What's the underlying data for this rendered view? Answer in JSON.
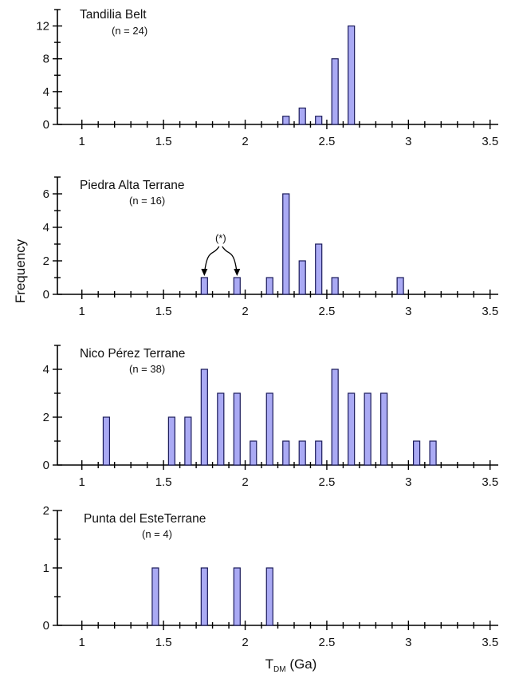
{
  "chart_data": [
    {
      "type": "bar",
      "title": "Tandilia Belt",
      "subtitle": "(n = 24)",
      "bin_width": 0.1,
      "xlim": [
        0.85,
        3.55
      ],
      "ylim": [
        0,
        14
      ],
      "xticks": [
        1,
        1.5,
        2,
        2.5,
        3,
        3.5
      ],
      "xtick_labels": [
        "1",
        "1.5",
        "2",
        "2.5",
        "3",
        "3.5"
      ],
      "yticks": [
        0,
        4,
        8,
        12
      ],
      "ytick_labels": [
        "0",
        "4",
        "8",
        "12"
      ],
      "bins": [
        {
          "x": 2.25,
          "value": 1
        },
        {
          "x": 2.35,
          "value": 2
        },
        {
          "x": 2.45,
          "value": 1
        },
        {
          "x": 2.55,
          "value": 8
        },
        {
          "x": 2.65,
          "value": 12
        }
      ]
    },
    {
      "type": "bar",
      "title": "Piedra Alta Terrane",
      "subtitle": "(n = 16)",
      "annotation": "(*)",
      "annotated_bins": [
        1.75,
        1.95
      ],
      "bin_width": 0.1,
      "xlim": [
        0.85,
        3.55
      ],
      "ylim": [
        0,
        7
      ],
      "xticks": [
        1,
        1.5,
        2,
        2.5,
        3,
        3.5
      ],
      "xtick_labels": [
        "1",
        "1.5",
        "2",
        "2.5",
        "3",
        "3.5"
      ],
      "yticks": [
        0,
        2,
        4,
        6
      ],
      "ytick_labels": [
        "0",
        "2",
        "4",
        "6"
      ],
      "bins": [
        {
          "x": 1.75,
          "value": 1
        },
        {
          "x": 1.95,
          "value": 1
        },
        {
          "x": 2.15,
          "value": 1
        },
        {
          "x": 2.25,
          "value": 6
        },
        {
          "x": 2.35,
          "value": 2
        },
        {
          "x": 2.45,
          "value": 3
        },
        {
          "x": 2.55,
          "value": 1
        },
        {
          "x": 2.95,
          "value": 1
        }
      ]
    },
    {
      "type": "bar",
      "title": "Nico Pérez Terrane",
      "subtitle": "(n = 38)",
      "bin_width": 0.1,
      "xlim": [
        0.85,
        3.55
      ],
      "ylim": [
        0,
        5
      ],
      "xticks": [
        1,
        1.5,
        2,
        2.5,
        3,
        3.5
      ],
      "xtick_labels": [
        "1",
        "1.5",
        "2",
        "2.5",
        "3",
        "3.5"
      ],
      "yticks": [
        0,
        2,
        4
      ],
      "ytick_labels": [
        "0",
        "2",
        "4"
      ],
      "bins": [
        {
          "x": 1.15,
          "value": 2
        },
        {
          "x": 1.55,
          "value": 2
        },
        {
          "x": 1.65,
          "value": 2
        },
        {
          "x": 1.75,
          "value": 4
        },
        {
          "x": 1.85,
          "value": 3
        },
        {
          "x": 1.95,
          "value": 3
        },
        {
          "x": 2.05,
          "value": 1
        },
        {
          "x": 2.15,
          "value": 3
        },
        {
          "x": 2.25,
          "value": 1
        },
        {
          "x": 2.35,
          "value": 1
        },
        {
          "x": 2.45,
          "value": 1
        },
        {
          "x": 2.55,
          "value": 4
        },
        {
          "x": 2.65,
          "value": 3
        },
        {
          "x": 2.75,
          "value": 3
        },
        {
          "x": 2.85,
          "value": 3
        },
        {
          "x": 3.05,
          "value": 1
        },
        {
          "x": 3.15,
          "value": 1
        }
      ]
    },
    {
      "type": "bar",
      "title": "Punta del EsteTerrane",
      "subtitle": "(n = 4)",
      "bin_width": 0.1,
      "xlim": [
        0.85,
        3.55
      ],
      "ylim": [
        0,
        2
      ],
      "xticks": [
        1,
        1.5,
        2,
        2.5,
        3,
        3.5
      ],
      "xtick_labels": [
        "1",
        "1.5",
        "2",
        "2.5",
        "3",
        "3.5"
      ],
      "yticks": [
        0,
        1,
        2
      ],
      "ytick_labels": [
        "0",
        "1",
        "2"
      ],
      "bins": [
        {
          "x": 1.45,
          "value": 1
        },
        {
          "x": 1.75,
          "value": 1
        },
        {
          "x": 1.95,
          "value": 1
        },
        {
          "x": 2.15,
          "value": 1
        }
      ]
    }
  ],
  "ylabel": "Frequency",
  "xlabel_main": "T",
  "xlabel_sub": "DM",
  "xlabel_unit": " (Ga)",
  "colors": {
    "bar_fill": "#aaaaf4",
    "bar_stroke": "#1a1a5a",
    "axis": "#000000"
  }
}
